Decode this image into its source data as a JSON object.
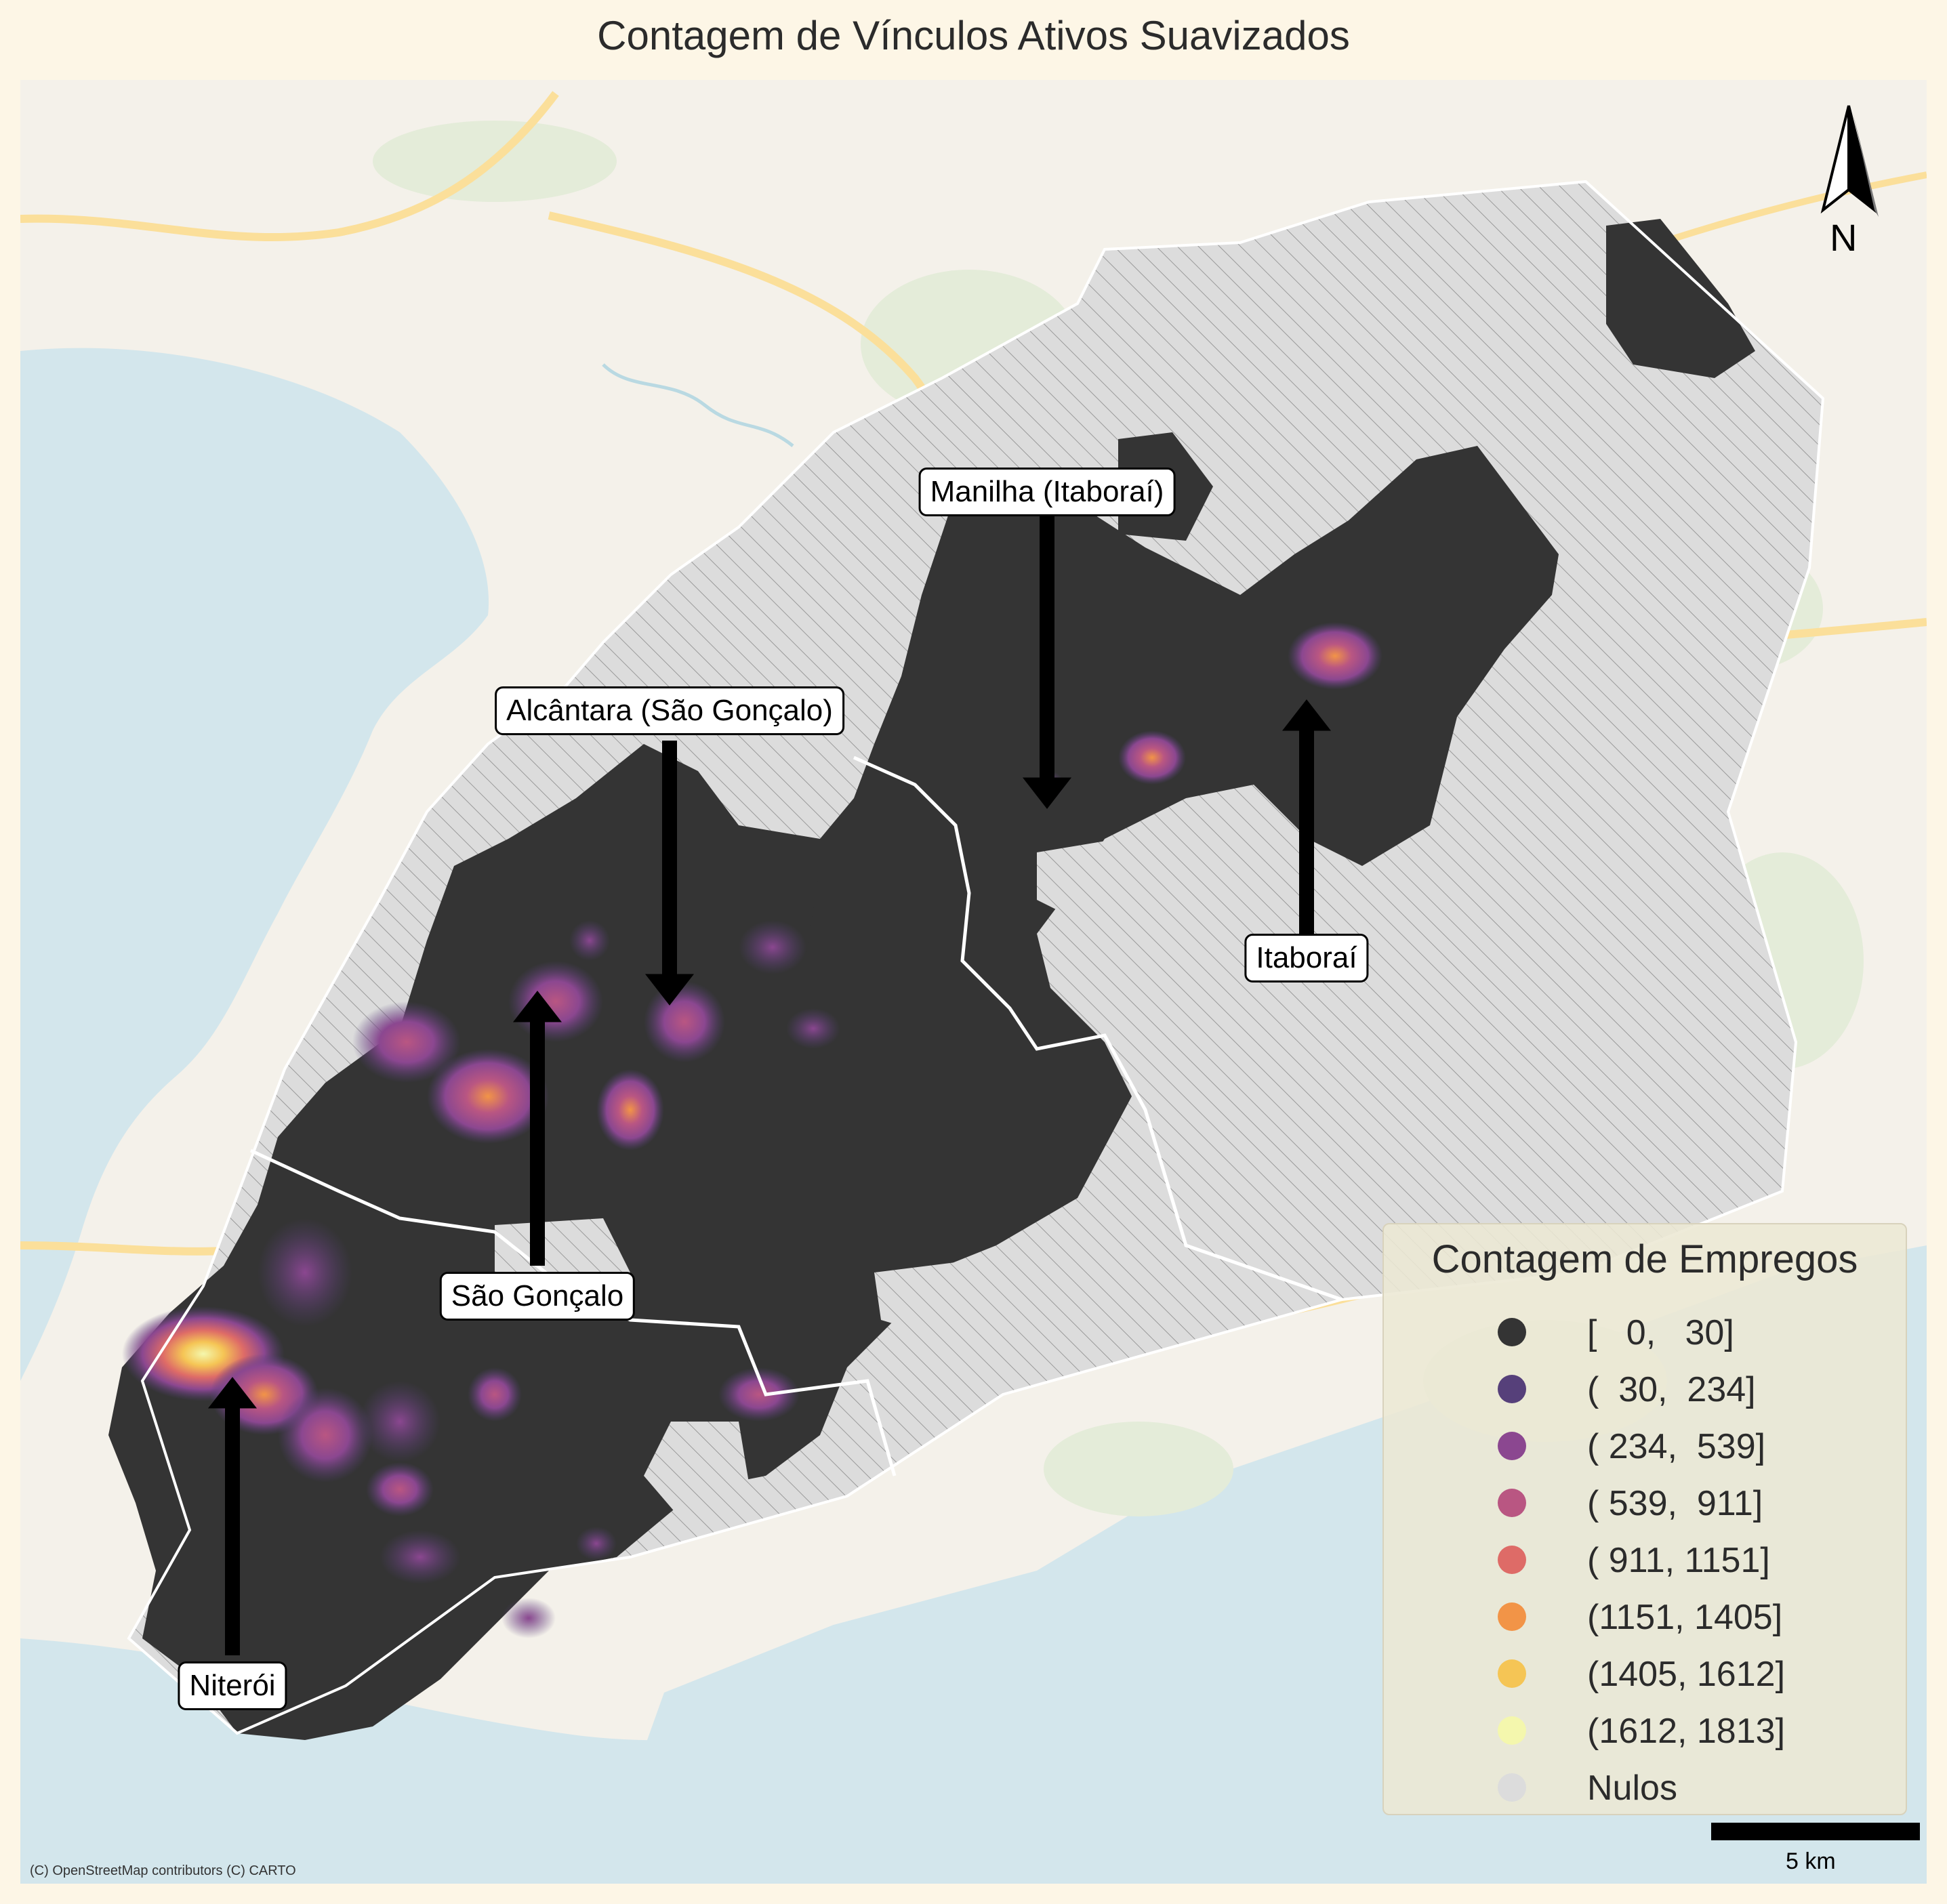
{
  "title": "Contagem de Vínculos Ativos Suavizados",
  "legend": {
    "title": "Contagem de Empregos",
    "items": [
      {
        "label": "[   0,   30]",
        "color": "#343434"
      },
      {
        "label": "(  30,  234]",
        "color": "#56407a"
      },
      {
        "label": "( 234,  539]",
        "color": "#8b4790"
      },
      {
        "label": "( 539,  911]",
        "color": "#b95682"
      },
      {
        "label": "( 911, 1151]",
        "color": "#de6b67"
      },
      {
        "label": "(1151, 1405]",
        "color": "#f29447"
      },
      {
        "label": "(1405, 1612]",
        "color": "#f5c555"
      },
      {
        "label": "(1612, 1813]",
        "color": "#f4f7ad"
      },
      {
        "label": "Nulos",
        "color": "#dcdcdc"
      }
    ]
  },
  "callouts": [
    {
      "label": "Manilha (Itaboraí)"
    },
    {
      "label": "Alcântara (São Gonçalo)"
    },
    {
      "label": "Itaboraí"
    },
    {
      "label": "São Gonçalo"
    },
    {
      "label": "Niterói"
    }
  ],
  "north_label": "N",
  "scale_label": "5 km",
  "attribution": "(C) OpenStreetMap contributors (C) CARTO",
  "colors": {
    "water": "#d3e6ec",
    "land": "#f4f1ea",
    "null_area": "#dcdcdc",
    "region_border": "#ffffff",
    "road": "#fbdf9a"
  },
  "icons": {
    "north": "north-arrow-icon"
  }
}
